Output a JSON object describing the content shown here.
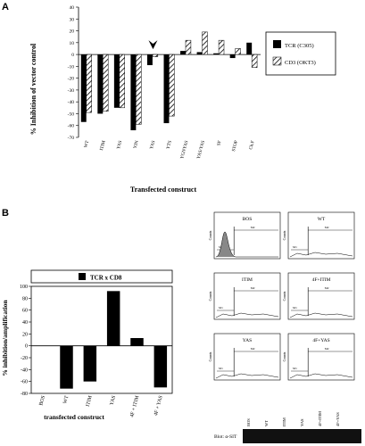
{
  "panel_a": {
    "letter": "A",
    "ylabel": "% Inhibition of vector control",
    "xlabel": "Transfected construct"
  },
  "panel_b": {
    "letter": "B",
    "ylabel": "% inhibition/amplification",
    "xlabel": "transfected construct",
    "legend_title": "TCR x CD8"
  },
  "flow": {
    "y_axis_label": "Counts",
    "panels": [
      {
        "title": "BOS",
        "m1": "M1",
        "m2": "M2"
      },
      {
        "title": "WT",
        "m1": "M1",
        "m2": "M2"
      },
      {
        "title": "ITIM",
        "m1": "M1",
        "m2": "M2"
      },
      {
        "title": "4F+ITIM",
        "m1": "M1",
        "m2": "M2"
      },
      {
        "title": "YAS",
        "m1": "M1",
        "m2": "M2"
      },
      {
        "title": "4F+YAS",
        "m1": "M1",
        "m2": "M2"
      }
    ]
  },
  "blot": {
    "label": "Blot: α-SIT",
    "lanes": [
      "BOS",
      "WT",
      "ITIM",
      "YAS",
      "4F+ITIM",
      "4F+YAS"
    ]
  },
  "colors": {
    "solid": "#000000",
    "hatch": "#000000",
    "background": "#ffffff"
  },
  "chart_data": [
    {
      "type": "bar",
      "categories": [
        "WT",
        "ITIM",
        "YAS",
        "YIN",
        "YAS",
        "YTS",
        "YGNYAS",
        "YAS/YAS",
        "SF",
        "STOP",
        "Ch.F"
      ],
      "series": [
        {
          "name": "TCR (C305)",
          "values": [
            -57,
            -50,
            -45,
            -64,
            -9,
            -58,
            3,
            2,
            1,
            -3,
            10
          ]
        },
        {
          "name": "CD3 (OKT3)",
          "values": [
            -49,
            -48,
            -45,
            -59,
            -2,
            -52,
            12,
            19,
            12,
            5,
            -11
          ]
        }
      ],
      "ylim": [
        -70,
        40
      ],
      "yticks": [
        40,
        30,
        20,
        10,
        0,
        -10,
        -20,
        -30,
        -40,
        -50,
        -60,
        -70
      ],
      "ylabel": "% Inhibition of vector control",
      "xlabel": "Transfected construct",
      "legend": "right",
      "grid": false
    },
    {
      "type": "bar",
      "categories": [
        "BOS",
        "WT",
        "ITIM",
        "YAS",
        "4F + ITIM",
        "4F + YAS"
      ],
      "series": [
        {
          "name": "TCR x CD8",
          "values": [
            0,
            -72,
            -60,
            92,
            13,
            -70
          ]
        }
      ],
      "ylim": [
        -80,
        100
      ],
      "yticks": [
        100,
        80,
        60,
        40,
        20,
        0,
        -20,
        -40,
        -60,
        -80
      ],
      "ylabel": "% inhibition/amplification",
      "xlabel": "transfected construct",
      "legend": "top",
      "grid": false
    }
  ]
}
